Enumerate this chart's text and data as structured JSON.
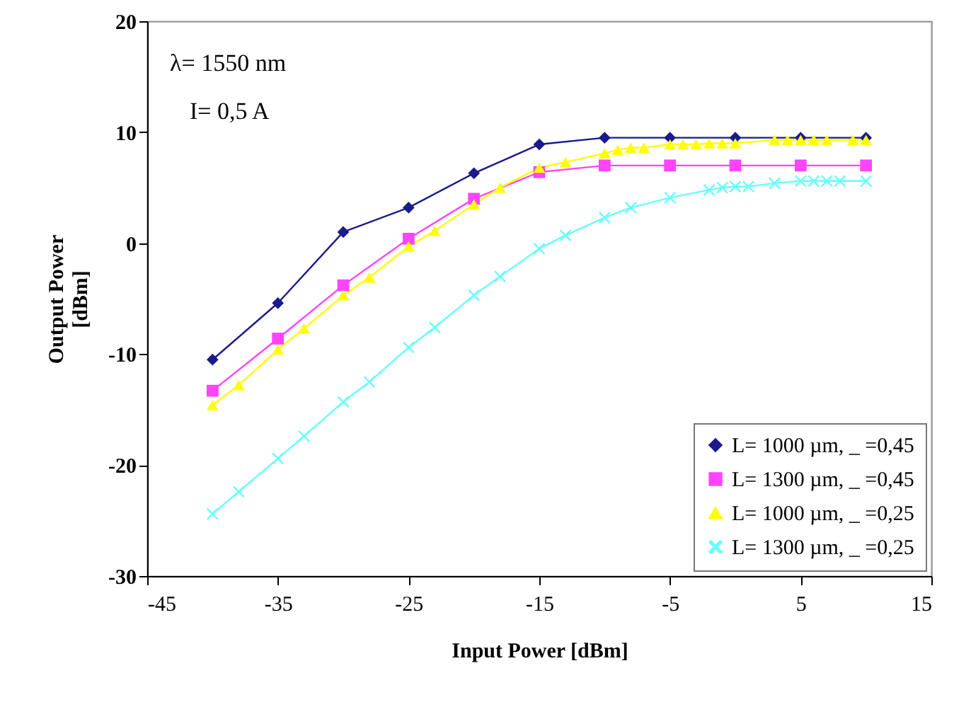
{
  "chart_data": {
    "type": "line",
    "xlabel": "Input Power [dBm]",
    "ylabel": "Output Power\n[dBm]",
    "annotations": [
      "λ= 1550 nm",
      "I= 0,5 A"
    ],
    "xlim": [
      -45,
      15
    ],
    "xticks": [
      -45,
      -35,
      -25,
      -15,
      -5,
      5,
      15
    ],
    "ylim": [
      -30,
      20
    ],
    "yticks": [
      -30,
      -20,
      -10,
      0,
      10,
      20
    ],
    "grid": false,
    "legend": "bottom right",
    "series": [
      {
        "name": "L= 1000 µm, _ =0,45",
        "color": "#1a1a8c",
        "marker": "diamond",
        "x": [
          -40,
          -35,
          -30,
          -25,
          -20,
          -15,
          -10,
          -5,
          0,
          5,
          10
        ],
        "values": [
          -10.5,
          -5.4,
          1.0,
          3.2,
          6.3,
          8.9,
          9.5,
          9.5,
          9.5,
          9.5,
          9.5
        ]
      },
      {
        "name": "L= 1300 µm, _ =0,45",
        "color": "#ff44ff",
        "marker": "square",
        "x": [
          -40,
          -35,
          -30,
          -25,
          -20,
          -15,
          -10,
          -5,
          0,
          5,
          10
        ],
        "values": [
          -13.3,
          -8.6,
          -3.8,
          0.4,
          4.0,
          6.4,
          7.0,
          7.0,
          7.0,
          7.0,
          7.0
        ]
      },
      {
        "name": "L= 1000 µm, _ =0,25",
        "color": "#ffff00",
        "marker": "triangle",
        "x": [
          -40,
          -38,
          -35,
          -33,
          -30,
          -28,
          -25,
          -23,
          -20,
          -18,
          -15,
          -13,
          -10,
          -9,
          -8,
          -7,
          -5,
          -4,
          -3,
          -2,
          -1,
          0,
          3,
          4,
          5,
          6,
          7,
          9,
          10
        ],
        "values": [
          -14.6,
          -12.8,
          -9.6,
          -7.7,
          -4.7,
          -3.1,
          -0.3,
          1.1,
          3.5,
          5.0,
          6.8,
          7.3,
          8.1,
          8.4,
          8.6,
          8.6,
          8.9,
          8.9,
          8.9,
          9.0,
          9.0,
          9.0,
          9.3,
          9.3,
          9.3,
          9.3,
          9.3,
          9.3,
          9.3
        ]
      },
      {
        "name": "L= 1300 µm, _ =0,25",
        "color": "#66ffff",
        "marker": "cross",
        "x": [
          -40,
          -38,
          -35,
          -33,
          -30,
          -28,
          -25,
          -23,
          -20,
          -18,
          -15,
          -13,
          -10,
          -8,
          -5,
          -2,
          -1,
          0,
          1,
          3,
          5,
          6,
          7,
          8,
          10
        ],
        "values": [
          -24.4,
          -22.4,
          -19.4,
          -17.4,
          -14.3,
          -12.5,
          -9.4,
          -7.6,
          -4.7,
          -3.0,
          -0.5,
          0.7,
          2.3,
          3.2,
          4.1,
          4.8,
          5.0,
          5.1,
          5.1,
          5.4,
          5.6,
          5.6,
          5.6,
          5.6,
          5.6
        ]
      }
    ]
  }
}
